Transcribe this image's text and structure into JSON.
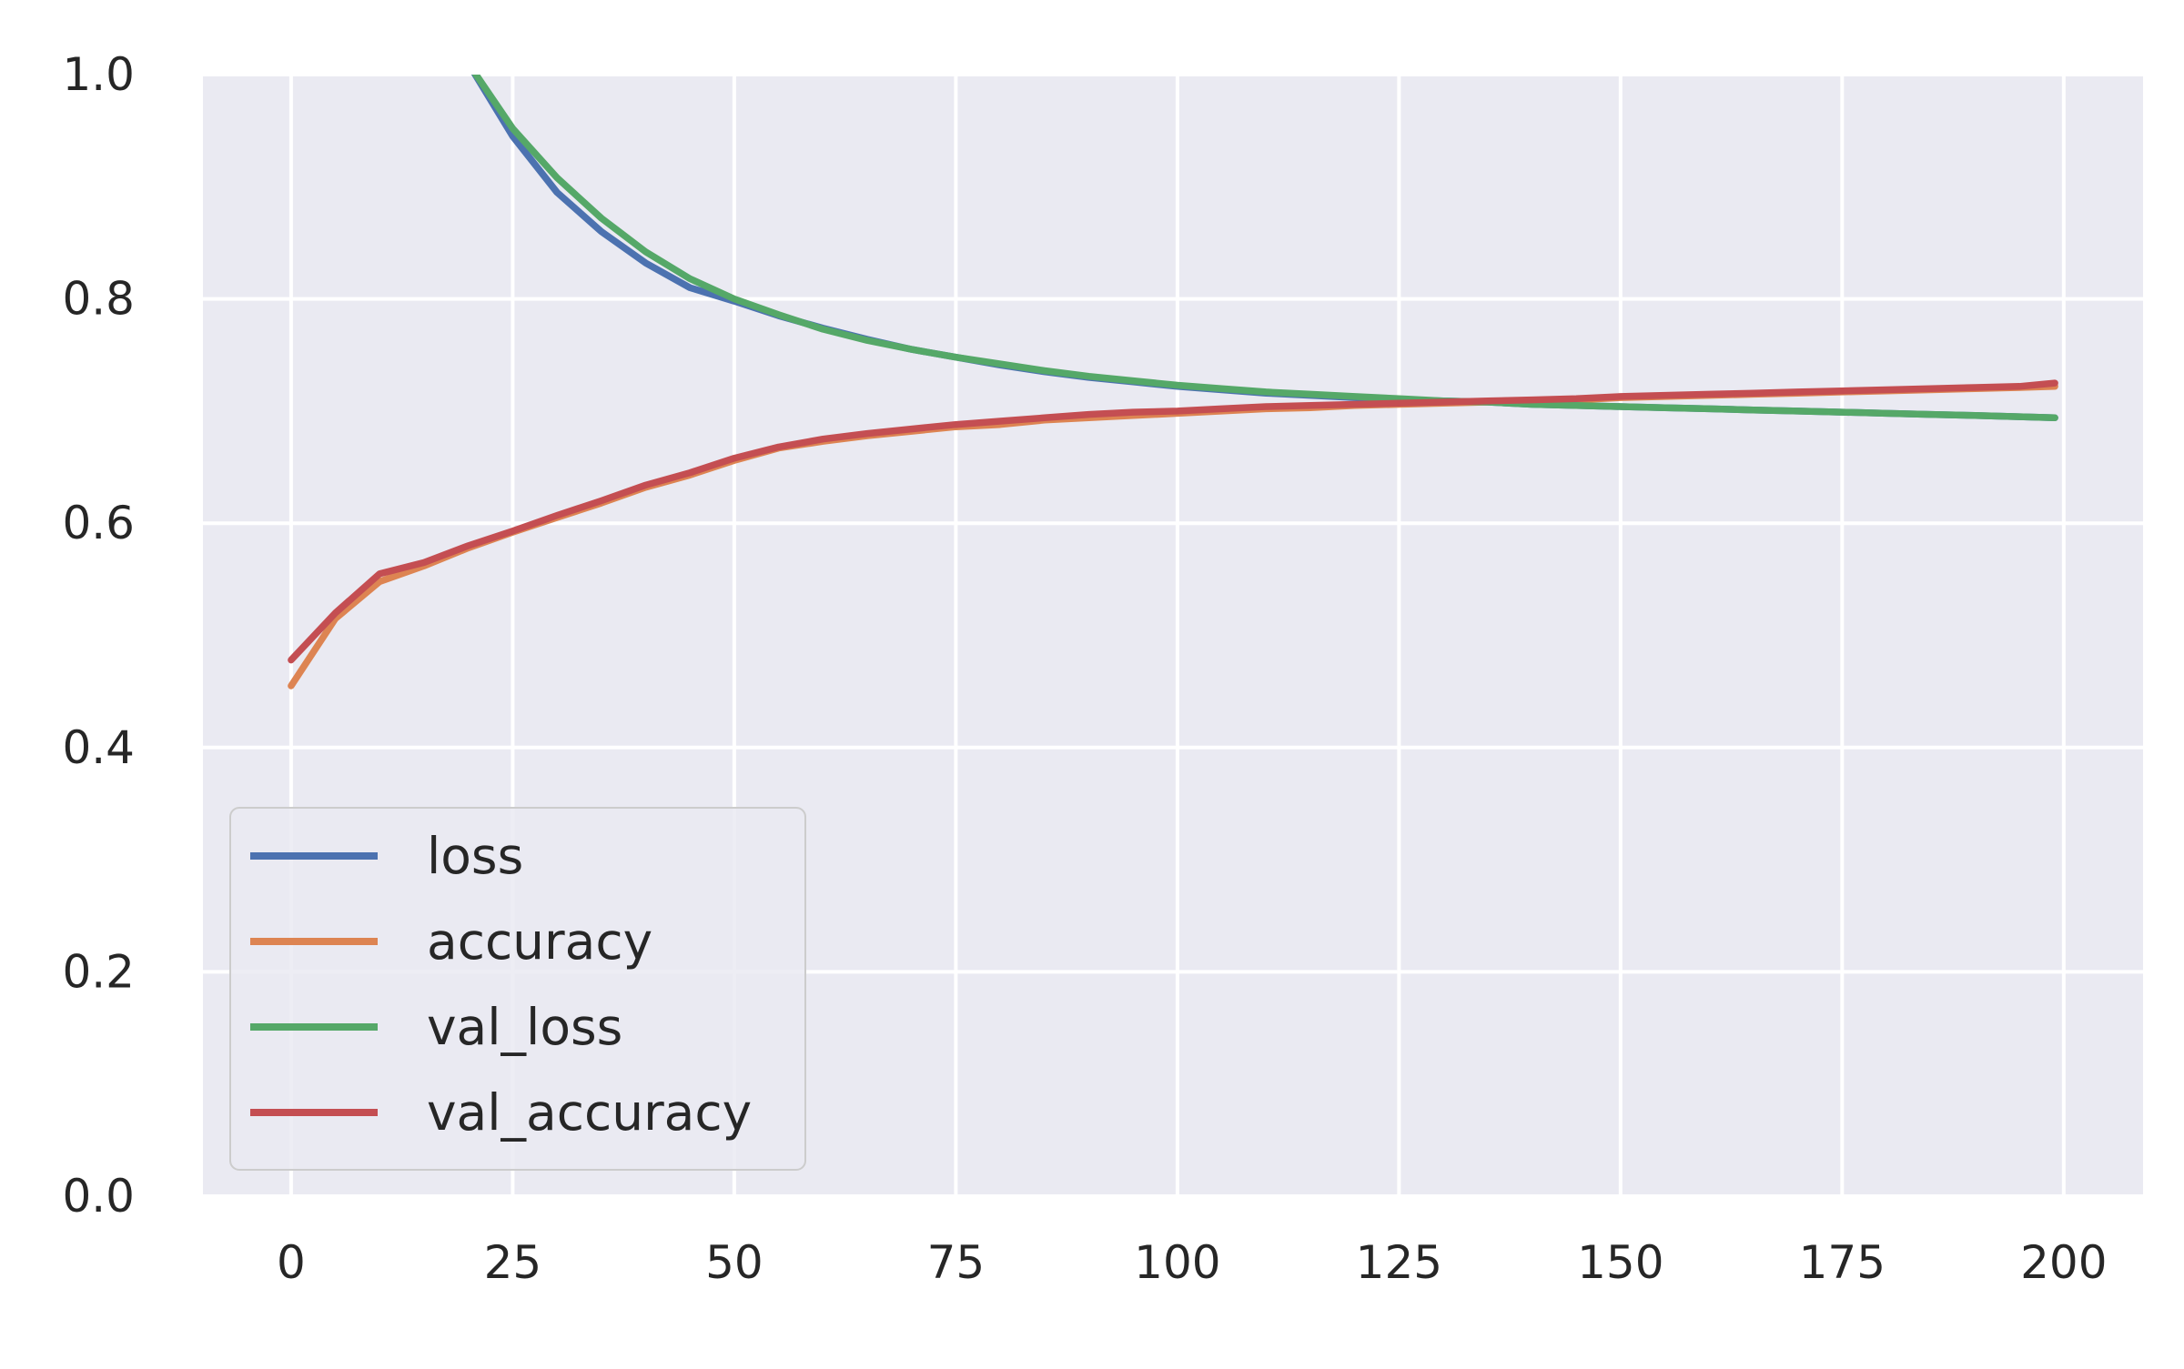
{
  "chart_data": {
    "type": "line",
    "title": "",
    "xlabel": "",
    "ylabel": "",
    "xlim": [
      -9.95,
      208.95
    ],
    "ylim": [
      0.0,
      1.0
    ],
    "x_ticks": [
      0,
      25,
      50,
      75,
      100,
      125,
      150,
      175,
      200
    ],
    "y_ticks": [
      0.0,
      0.2,
      0.4,
      0.6,
      0.8,
      1.0
    ],
    "x_tick_labels": [
      "0",
      "25",
      "50",
      "75",
      "100",
      "125",
      "150",
      "175",
      "200"
    ],
    "y_tick_labels": [
      "0.0",
      "0.2",
      "0.4",
      "0.6",
      "0.8",
      "1.0"
    ],
    "grid": true,
    "legend_position": "lower-left",
    "x": [
      0,
      5,
      10,
      15,
      20,
      25,
      30,
      35,
      40,
      45,
      50,
      55,
      60,
      65,
      70,
      75,
      80,
      85,
      90,
      95,
      100,
      105,
      110,
      115,
      120,
      125,
      130,
      135,
      140,
      145,
      150,
      155,
      160,
      165,
      170,
      175,
      180,
      185,
      190,
      195,
      199
    ],
    "series": [
      {
        "name": "loss",
        "color": "#4c72b0",
        "values": [
          null,
          null,
          null,
          null,
          1.01,
          0.945,
          0.895,
          0.86,
          0.832,
          0.81,
          0.798,
          0.785,
          0.774,
          0.764,
          0.755,
          0.748,
          0.741,
          0.735,
          0.73,
          0.726,
          0.722,
          0.719,
          0.716,
          0.714,
          0.712,
          0.71,
          0.709,
          0.708,
          0.706,
          0.705,
          0.704,
          0.703,
          0.702,
          0.701,
          0.7,
          0.699,
          0.698,
          0.697,
          0.696,
          0.695,
          0.694
        ]
      },
      {
        "name": "accuracy",
        "color": "#dd8452",
        "values": [
          0.455,
          0.515,
          0.548,
          0.562,
          0.578,
          0.592,
          0.605,
          0.618,
          0.632,
          0.643,
          0.656,
          0.667,
          0.673,
          0.678,
          0.682,
          0.686,
          0.688,
          0.692,
          0.694,
          0.696,
          0.698,
          0.7,
          0.702,
          0.703,
          0.705,
          0.706,
          0.707,
          0.708,
          0.709,
          0.71,
          0.712,
          0.713,
          0.714,
          0.715,
          0.716,
          0.717,
          0.718,
          0.719,
          0.72,
          0.721,
          0.722
        ]
      },
      {
        "name": "val_loss",
        "color": "#55a868",
        "values": [
          null,
          null,
          null,
          null,
          1.01,
          0.952,
          0.908,
          0.872,
          0.842,
          0.818,
          0.8,
          0.786,
          0.773,
          0.763,
          0.755,
          0.748,
          0.742,
          0.736,
          0.731,
          0.727,
          0.723,
          0.72,
          0.717,
          0.715,
          0.713,
          0.711,
          0.709,
          0.708,
          0.706,
          0.705,
          0.704,
          0.703,
          0.702,
          0.701,
          0.7,
          0.699,
          0.698,
          0.697,
          0.696,
          0.695,
          0.694
        ]
      },
      {
        "name": "val_accuracy",
        "color": "#c44e52",
        "values": [
          0.478,
          0.52,
          0.555,
          0.565,
          0.58,
          0.593,
          0.607,
          0.62,
          0.634,
          0.645,
          0.658,
          0.668,
          0.675,
          0.68,
          0.684,
          0.688,
          0.691,
          0.694,
          0.697,
          0.699,
          0.7,
          0.702,
          0.704,
          0.705,
          0.706,
          0.707,
          0.708,
          0.709,
          0.71,
          0.711,
          0.713,
          0.714,
          0.715,
          0.716,
          0.717,
          0.718,
          0.719,
          0.72,
          0.721,
          0.722,
          0.725
        ]
      }
    ]
  }
}
